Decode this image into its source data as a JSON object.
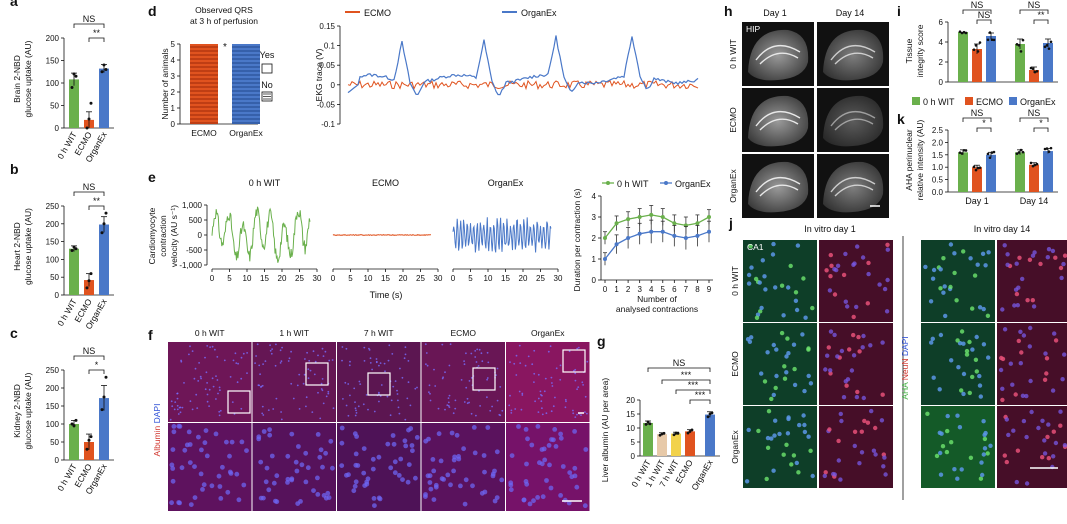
{
  "colors": {
    "wit": "#6ab04c",
    "ecmo": "#e0531f",
    "organex": "#4a78c8",
    "wit1": "#e7c9a8",
    "wit7": "#f2d24b",
    "micro_bg": "#111111",
    "sig": "#111111"
  },
  "panels": {
    "a": {
      "letter": "a",
      "ylabel": [
        "Brain 2-NBD",
        "glucose uptake (AU)"
      ],
      "sig": [
        {
          "text": "NS",
          "from": 0,
          "to": 2
        },
        {
          "text": "**",
          "from": 1,
          "to": 2
        }
      ]
    },
    "b": {
      "letter": "b",
      "ylabel": [
        "Heart 2-NBD",
        "glucose uptake (AU)"
      ],
      "sig": [
        {
          "text": "NS",
          "from": 0,
          "to": 2
        },
        {
          "text": "**",
          "from": 1,
          "to": 2
        }
      ]
    },
    "c": {
      "letter": "c",
      "ylabel": [
        "Kidney 2-NBD",
        "glucose uptake (AU)"
      ],
      "sig": [
        {
          "text": "NS",
          "from": 0,
          "to": 2
        },
        {
          "text": "*",
          "from": 1,
          "to": 2
        }
      ]
    },
    "d": {
      "letter": "d",
      "title": [
        "Observed QRS",
        "at 3 h of perfusion"
      ],
      "ylabel": "Number of animals",
      "star": "*",
      "legend": [
        "Yes",
        "No"
      ],
      "trace_ylabel": "EKG trace (V)"
    },
    "e": {
      "letter": "e",
      "ylabel": [
        "Cardiomyocyte",
        "contraction",
        "velocity (AU s⁻¹)"
      ],
      "xlabel": "Time (s)",
      "groups": [
        "0 h WIT",
        "ECMO",
        "OrganEx"
      ],
      "dur_ylabel": "Duration per contraction (s)",
      "dur_xlabel": [
        "Number of",
        "analysed contractions"
      ]
    },
    "f": {
      "letter": "f",
      "groups": [
        "0 h WIT",
        "1 h WIT",
        "7 h WIT",
        "ECMO",
        "OrganEx"
      ],
      "stain_a": "Albumin",
      "stain_b": "DAPI"
    },
    "g": {
      "letter": "g",
      "ylabel": "Liver albumin (AU per area)",
      "sig": [
        {
          "text": "NS",
          "from": 0,
          "to": 4
        },
        {
          "text": "***",
          "from": 1,
          "to": 4
        },
        {
          "text": "***",
          "from": 2,
          "to": 4
        },
        {
          "text": "***",
          "from": 3,
          "to": 4
        }
      ]
    },
    "h": {
      "letter": "h",
      "cols": [
        "Day 1",
        "Day 14"
      ],
      "rows": [
        "0 h WIT",
        "ECMO",
        "OrganEx"
      ],
      "region": "HIP"
    },
    "i": {
      "letter": "i",
      "ylabel": [
        "Tissue",
        "integrity score"
      ],
      "sig": [
        {
          "text": "NS",
          "day": 0,
          "from": 0,
          "to": 2
        },
        {
          "text": "NS",
          "day": 0,
          "from": 1,
          "to": 2
        },
        {
          "text": "NS",
          "day": 1,
          "from": 0,
          "to": 2
        },
        {
          "text": "**",
          "day": 1,
          "from": 1,
          "to": 2
        }
      ]
    },
    "k": {
      "letter": "k",
      "ylabel": [
        "AHA perinuclear",
        "relative intensity (AU)"
      ],
      "days": [
        "Day 1",
        "Day 14"
      ],
      "sig": [
        {
          "text": "NS",
          "day": 0,
          "from": 0,
          "to": 2
        },
        {
          "text": "*",
          "day": 0,
          "from": 1,
          "to": 2
        },
        {
          "text": "NS",
          "day": 1,
          "from": 0,
          "to": 2
        },
        {
          "text": "*",
          "day": 1,
          "from": 1,
          "to": 2
        }
      ]
    },
    "j": {
      "letter": "j",
      "cols": [
        "In vitro day 1",
        "In vitro day 14"
      ],
      "rows": [
        "0 h WIT",
        "ECMO",
        "OrganEx"
      ],
      "region": "CA1",
      "stain": [
        "AHA",
        "NeuN",
        "DAPI"
      ]
    }
  },
  "legend_groups": [
    "0 h WIT",
    "ECMO",
    "OrganEx"
  ],
  "chart_data": [
    {
      "id": "a",
      "type": "bar",
      "categories": [
        "0 h WIT",
        "ECMO",
        "OrganEx"
      ],
      "values": [
        108,
        18,
        132
      ],
      "errors": [
        14,
        18,
        9
      ],
      "points": [
        [
          90,
          120,
          115
        ],
        [
          0,
          20,
          55
        ],
        [
          125,
          140,
          130
        ]
      ],
      "ylim": [
        0,
        200
      ],
      "yticks": [
        0,
        50,
        100,
        150,
        200
      ],
      "ylabel": "Brain 2-NBD glucose uptake (AU)"
    },
    {
      "id": "b",
      "type": "bar",
      "categories": [
        "0 h WIT",
        "ECMO",
        "OrganEx"
      ],
      "values": [
        130,
        42,
        198
      ],
      "errors": [
        8,
        18,
        22
      ],
      "points": [
        [
          125,
          135,
          130
        ],
        [
          20,
          40,
          60
        ],
        [
          175,
          200,
          230
        ]
      ],
      "ylim": [
        0,
        250
      ],
      "yticks": [
        0,
        50,
        100,
        150,
        200,
        250
      ],
      "ylabel": "Heart 2-NBD glucose uptake (AU)"
    },
    {
      "id": "c",
      "type": "bar",
      "categories": [
        "0 h WIT",
        "ECMO",
        "OrganEx"
      ],
      "values": [
        100,
        50,
        172
      ],
      "errors": [
        10,
        22,
        35
      ],
      "points": [
        [
          100,
          95,
          110
        ],
        [
          30,
          55,
          65
        ],
        [
          140,
          175,
          230
        ]
      ],
      "ylim": [
        0,
        250
      ],
      "yticks": [
        0,
        50,
        100,
        150,
        200,
        250
      ],
      "ylabel": "Kidney 2-NBD glucose uptake (AU)"
    },
    {
      "id": "d",
      "type": "bar",
      "categories": [
        "ECMO",
        "OrganEx"
      ],
      "series": [
        {
          "name": "Yes",
          "values": [
            0,
            5
          ]
        },
        {
          "name": "No",
          "values": [
            5,
            0
          ]
        }
      ],
      "ylim": [
        0,
        5
      ],
      "yticks": [
        0,
        1,
        2,
        3,
        4,
        5
      ],
      "ylabel": "Number of animals"
    },
    {
      "id": "d-trace",
      "type": "line",
      "series": [
        {
          "name": "ECMO"
        },
        {
          "name": "OrganEx"
        }
      ],
      "ylim": [
        -0.1,
        0.15
      ],
      "yticks": [
        -0.1,
        -0.05,
        0,
        0.05,
        0.1,
        0.15
      ],
      "ylabel": "EKG trace (V)"
    },
    {
      "id": "e-trace",
      "type": "line",
      "xlim": [
        0,
        30
      ],
      "xticks": [
        0,
        5,
        10,
        15,
        20,
        25,
        30
      ],
      "ylim": [
        -1000,
        1000
      ],
      "yticks": [
        -1000,
        -500,
        0,
        500,
        1000
      ],
      "xlabel": "Time (s)"
    },
    {
      "id": "e-duration",
      "type": "line",
      "x": [
        0,
        1,
        2,
        3,
        4,
        5,
        6,
        7,
        8,
        9
      ],
      "series": [
        {
          "name": "0 h WIT",
          "values": [
            2.0,
            2.7,
            2.9,
            3.0,
            3.1,
            3.0,
            2.7,
            2.6,
            2.7,
            3.0
          ],
          "errors": [
            0.3,
            0.35,
            0.35,
            0.4,
            0.45,
            0.4,
            0.4,
            0.4,
            0.4,
            0.35
          ]
        },
        {
          "name": "OrganEx",
          "values": [
            1.0,
            1.7,
            2.0,
            2.2,
            2.3,
            2.3,
            2.1,
            2.0,
            2.1,
            2.3
          ],
          "errors": [
            0.3,
            0.45,
            0.5,
            0.5,
            0.55,
            0.5,
            0.5,
            0.55,
            0.5,
            0.5
          ]
        }
      ],
      "xlim": [
        0,
        9
      ],
      "ylim": [
        0,
        4
      ],
      "xticks": [
        0,
        1,
        2,
        3,
        4,
        5,
        6,
        7,
        8,
        9
      ],
      "yticks": [
        0,
        1,
        2,
        3,
        4
      ]
    },
    {
      "id": "g",
      "type": "bar",
      "categories": [
        "0 h WIT",
        "1 h WIT",
        "7 h WIT",
        "ECMO",
        "OrganEx"
      ],
      "values": [
        11.8,
        7.8,
        8.0,
        8.8,
        14.8
      ],
      "errors": [
        0.7,
        0.5,
        0.5,
        0.6,
        1.0
      ],
      "points": [
        [
          11.3,
          12.2,
          11.5
        ],
        [
          7.4,
          7.9,
          8.1
        ],
        [
          7.6,
          8.2,
          8.1
        ],
        [
          8.2,
          8.8,
          9.3
        ],
        [
          14.0,
          15.0,
          15.4
        ]
      ],
      "ylim": [
        0,
        20
      ],
      "yticks": [
        0,
        5,
        10,
        15,
        20
      ],
      "ylabel": "Liver albumin (AU per area)"
    },
    {
      "id": "i",
      "type": "bar",
      "categories": [
        "Day 1",
        "Day 14"
      ],
      "series": [
        {
          "name": "0 h WIT",
          "values": [
            5.0,
            3.8
          ],
          "errors": [
            0,
            0.5
          ]
        },
        {
          "name": "ECMO",
          "values": [
            3.3,
            1.2
          ],
          "errors": [
            0.5,
            0.3
          ]
        },
        {
          "name": "OrganEx",
          "values": [
            4.6,
            3.9
          ],
          "errors": [
            0.3,
            0.4
          ]
        }
      ],
      "ylim": [
        0,
        6
      ],
      "yticks": [
        0,
        2,
        4,
        6
      ],
      "ylabel": "Tissue integrity score"
    },
    {
      "id": "k",
      "type": "bar",
      "categories": [
        "Day 1",
        "Day 14"
      ],
      "series": [
        {
          "name": "0 h WIT",
          "values": [
            1.6,
            1.6
          ],
          "errors": [
            0.1,
            0.1
          ]
        },
        {
          "name": "ECMO",
          "values": [
            1.0,
            1.1
          ],
          "errors": [
            0.08,
            0.08
          ]
        },
        {
          "name": "OrganEx",
          "values": [
            1.5,
            1.65
          ],
          "errors": [
            0.1,
            0.1
          ]
        }
      ],
      "ylim": [
        0,
        2.5
      ],
      "yticks": [
        0,
        0.5,
        1.0,
        1.5,
        2.0,
        2.5
      ],
      "ylabel": "AHA perinuclear relative intensity (AU)"
    }
  ]
}
